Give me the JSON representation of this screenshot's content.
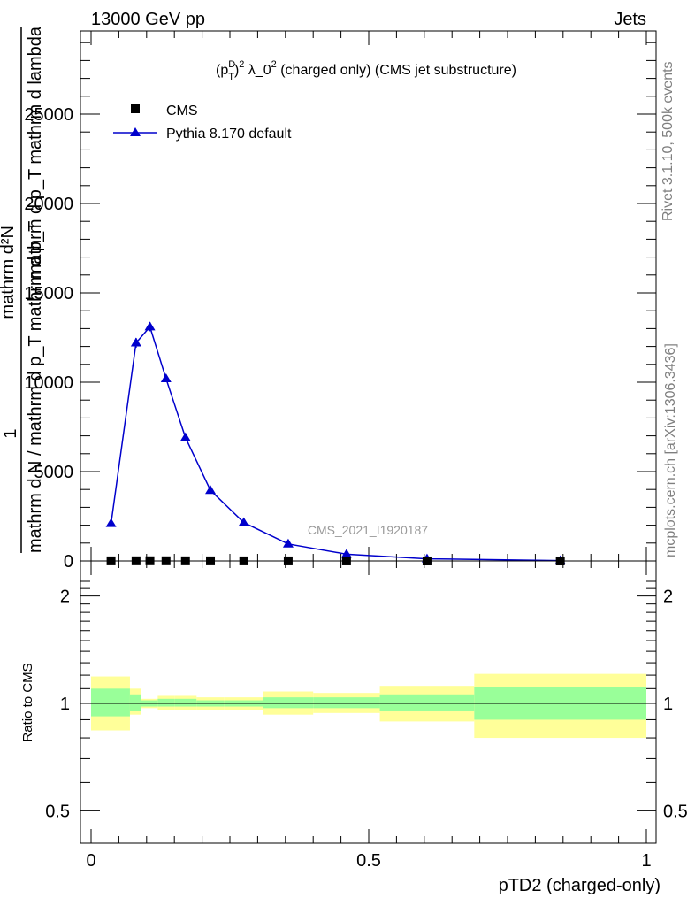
{
  "header": {
    "left_label": "13000 GeV pp",
    "right_label": "Jets"
  },
  "side_labels": {
    "rivet": "Rivet 3.1.10,  500k events",
    "mcplots": "mcplots.cern.ch [arXiv:1306.3436]"
  },
  "main_plot": {
    "title": "(p_T^D)^2 λ_0^2 (charged only) (CMS jet substructure)",
    "title_parts": {
      "p": "(p",
      "sup_d": "D",
      "sub_t": "T",
      "close": ")",
      "sup_2": "2",
      "mid": " λ_0",
      "sup_2b": "2",
      "rest": " (charged only) (CMS jet substructure)"
    },
    "ylabel_numerator": "mathrm d²N",
    "ylabel_line2": "mathrm d p_T mathrm d lambda",
    "ylabel_fraction_one": "1",
    "ylabel_denominator": "mathrm d N / mathrm d p_T mathrm d p_T",
    "watermark": "CMS_2021_I1920187",
    "legend": {
      "cms": "CMS",
      "pythia": "Pythia 8.170 default"
    }
  },
  "ratio_plot": {
    "ylabel": "Ratio to CMS",
    "xlabel": "pTD2 (charged-only)"
  },
  "colors": {
    "mc_line": "#0000cc",
    "band_inner": "#99ff99",
    "band_outer": "#ffff99",
    "axis": "#000000",
    "watermark": "#999999"
  },
  "chart_data": [
    {
      "type": "line",
      "title": "(p_T^D)^2 λ_0^2 (charged only) (CMS jet substructure)",
      "xlabel": "pTD2 (charged-only)",
      "ylabel": "1 / (dN/dp_T) d²N/(dp_T dλ)",
      "xlim": [
        0,
        1
      ],
      "ylim": [
        0,
        30000
      ],
      "x_ticks": [
        0,
        0.5,
        1
      ],
      "x_tick_labels": [
        "0",
        "0.5",
        "1"
      ],
      "y_ticks": [
        0,
        5000,
        10000,
        15000,
        20000,
        25000
      ],
      "y_tick_labels": [
        "0",
        "5000",
        "10000",
        "15000",
        "20000",
        "25000"
      ],
      "legend_position": "top-left",
      "series": [
        {
          "name": "CMS",
          "marker": "square",
          "x": [
            0.036,
            0.081,
            0.106,
            0.135,
            0.17,
            0.215,
            0.275,
            0.355,
            0.46,
            0.605,
            0.845
          ],
          "values": [
            5,
            8,
            10,
            9,
            7,
            5,
            4,
            3,
            2,
            1,
            0.5
          ]
        },
        {
          "name": "Pythia 8.170 default",
          "marker": "triangle",
          "x": [
            0.036,
            0.081,
            0.106,
            0.135,
            0.17,
            0.215,
            0.275,
            0.355,
            0.46,
            0.605,
            0.845
          ],
          "values": [
            2100,
            12200,
            13100,
            10200,
            6900,
            3950,
            2150,
            950,
            380,
            120,
            20
          ],
          "errors": [
            0,
            270,
            250,
            180,
            120,
            80,
            60,
            40,
            25,
            10,
            5
          ]
        }
      ]
    },
    {
      "type": "area",
      "title": "Ratio to CMS",
      "ylabel": "Ratio to CMS",
      "xlabel": "pTD2 (charged-only)",
      "xlim": [
        0,
        1
      ],
      "ylim": [
        0.4,
        2.3
      ],
      "y_scale": "log",
      "x_ticks": [
        0,
        0.5,
        1
      ],
      "x_tick_labels": [
        "0",
        "0.5",
        "1"
      ],
      "y_ticks": [
        0.5,
        1,
        2
      ],
      "y_tick_labels": [
        "0.5",
        "1",
        "2"
      ],
      "reference_line": 1,
      "bins": [
        {
          "lo": 0.0,
          "hi": 0.07,
          "inner": [
            0.92,
            1.1
          ],
          "outer": [
            0.84,
            1.19
          ]
        },
        {
          "lo": 0.07,
          "hi": 0.09,
          "inner": [
            0.95,
            1.06
          ],
          "outer": [
            0.93,
            1.1
          ]
        },
        {
          "lo": 0.09,
          "hi": 0.12,
          "inner": [
            0.98,
            1.02
          ],
          "outer": [
            0.97,
            1.03
          ]
        },
        {
          "lo": 0.12,
          "hi": 0.15,
          "inner": [
            0.98,
            1.03
          ],
          "outer": [
            0.96,
            1.05
          ]
        },
        {
          "lo": 0.15,
          "hi": 0.19,
          "inner": [
            0.98,
            1.03
          ],
          "outer": [
            0.96,
            1.05
          ]
        },
        {
          "lo": 0.19,
          "hi": 0.24,
          "inner": [
            0.98,
            1.02
          ],
          "outer": [
            0.96,
            1.04
          ]
        },
        {
          "lo": 0.24,
          "hi": 0.31,
          "inner": [
            0.98,
            1.02
          ],
          "outer": [
            0.96,
            1.04
          ]
        },
        {
          "lo": 0.31,
          "hi": 0.4,
          "inner": [
            0.97,
            1.04
          ],
          "outer": [
            0.93,
            1.08
          ]
        },
        {
          "lo": 0.4,
          "hi": 0.52,
          "inner": [
            0.97,
            1.04
          ],
          "outer": [
            0.94,
            1.07
          ]
        },
        {
          "lo": 0.52,
          "hi": 0.69,
          "inner": [
            0.95,
            1.06
          ],
          "outer": [
            0.89,
            1.12
          ]
        },
        {
          "lo": 0.69,
          "hi": 1.0,
          "inner": [
            0.9,
            1.11
          ],
          "outer": [
            0.8,
            1.21
          ]
        }
      ]
    }
  ]
}
